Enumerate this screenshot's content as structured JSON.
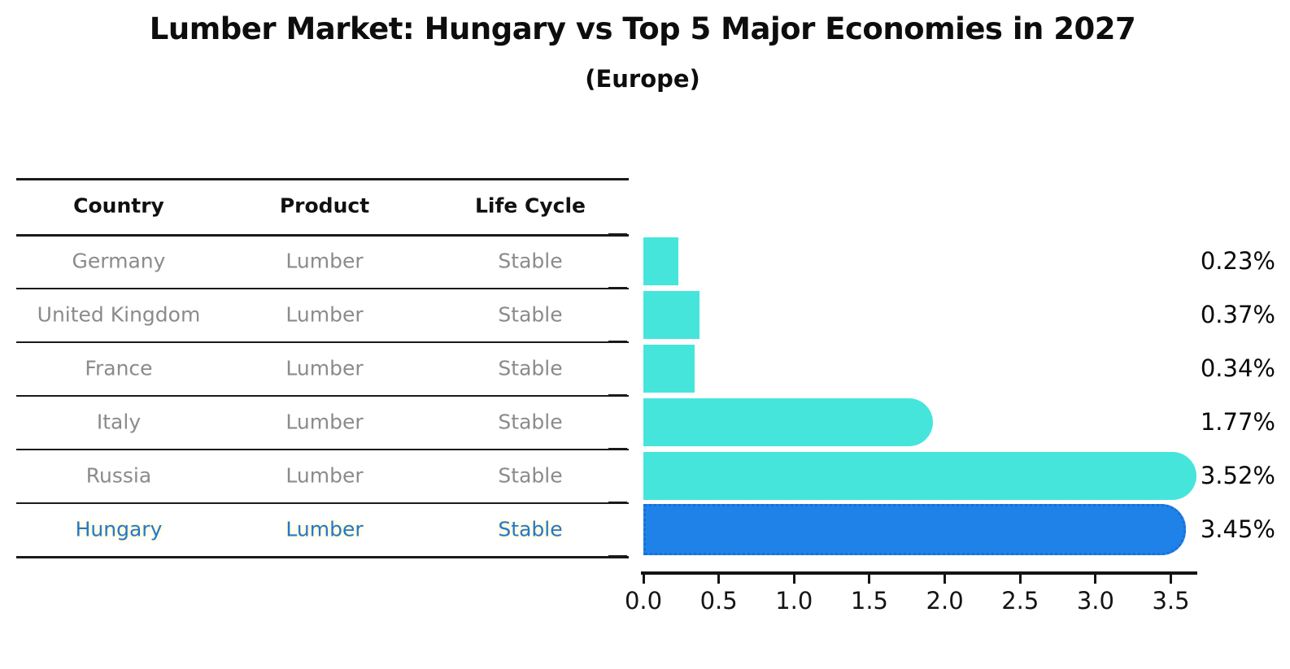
{
  "title": "Lumber Market: Hungary vs Top 5 Major Economies in 2027",
  "subtitle": "(Europe)",
  "table": {
    "headers": [
      "Country",
      "Product",
      "Life Cycle"
    ],
    "rows": [
      {
        "country": "Germany",
        "product": "Lumber",
        "life_cycle": "Stable",
        "highlight": false
      },
      {
        "country": "United Kingdom",
        "product": "Lumber",
        "life_cycle": "Stable",
        "highlight": false
      },
      {
        "country": "France",
        "product": "Lumber",
        "life_cycle": "Stable",
        "highlight": false
      },
      {
        "country": "Italy",
        "product": "Lumber",
        "life_cycle": "Stable",
        "highlight": false
      },
      {
        "country": "Russia",
        "product": "Lumber",
        "life_cycle": "Stable",
        "highlight": false
      },
      {
        "country": "Hungary",
        "product": "Lumber",
        "life_cycle": "Stable",
        "highlight": true
      }
    ]
  },
  "chart_data": {
    "type": "bar",
    "orientation": "horizontal",
    "title": "Lumber Market: Hungary vs Top 5 Major Economies in 2027 (Europe)",
    "categories": [
      "Germany",
      "United Kingdom",
      "France",
      "Italy",
      "Russia",
      "Hungary"
    ],
    "values": [
      0.23,
      0.37,
      0.34,
      1.77,
      3.52,
      3.45
    ],
    "value_labels": [
      "0.23%",
      "0.37%",
      "0.34%",
      "1.77%",
      "3.52%",
      "3.45%"
    ],
    "x_ticks": [
      "0.0",
      "0.5",
      "1.0",
      "1.5",
      "2.0",
      "2.5",
      "3.0",
      "3.5"
    ],
    "xlim": [
      0.0,
      3.67
    ],
    "grid": false,
    "legend": null,
    "highlight_index": 5,
    "colors": {
      "bar": "#46E5DC",
      "highlight_bar": "#1E82E8",
      "highlight_border": "#1B6FD6",
      "highlight_text": "#2577CD",
      "row_text": "#8B8B8B",
      "axis": "#141414"
    }
  }
}
